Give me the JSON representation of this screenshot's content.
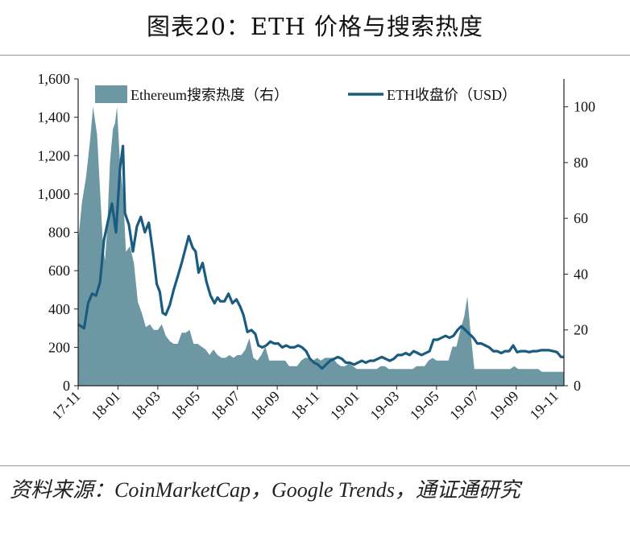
{
  "header": {
    "title": "图表20：ETH 价格与搜索热度"
  },
  "footer": {
    "source": "资料来源：CoinMarketCap，Google Trends，通证通研究"
  },
  "chart_data": {
    "type": "line",
    "title": "图表20：ETH 价格与搜索热度",
    "series": [
      {
        "name": "Ethereum搜索热度（右）",
        "kind": "area",
        "axis": "right",
        "color": "#6e97a4"
      },
      {
        "name": "ETH收盘价（USD）",
        "kind": "line",
        "axis": "left",
        "color": "#1a5c80"
      }
    ],
    "legend_position": "top",
    "left_axis": {
      "ylim": [
        0,
        1600
      ],
      "ticks": [
        "0",
        "200",
        "400",
        "600",
        "800",
        "1,000",
        "1,200",
        "1,400",
        "1,600"
      ]
    },
    "right_axis": {
      "ylim": [
        0,
        110
      ],
      "ticks": [
        "0",
        "20",
        "40",
        "60",
        "80",
        "100"
      ]
    },
    "x_ticks": [
      "17-11",
      "18-01",
      "18-03",
      "18-05",
      "18-07",
      "18-09",
      "18-11",
      "19-01",
      "19-03",
      "19-05",
      "19-07",
      "19-09",
      "19-11"
    ],
    "x_range": [
      0,
      24.4
    ],
    "price_points": [
      [
        0,
        320
      ],
      [
        0.3,
        300
      ],
      [
        0.5,
        430
      ],
      [
        0.7,
        480
      ],
      [
        0.9,
        470
      ],
      [
        1.1,
        540
      ],
      [
        1.3,
        760
      ],
      [
        1.5,
        860
      ],
      [
        1.7,
        950
      ],
      [
        1.9,
        800
      ],
      [
        2.1,
        1130
      ],
      [
        2.25,
        1250
      ],
      [
        2.35,
        900
      ],
      [
        2.55,
        840
      ],
      [
        2.75,
        700
      ],
      [
        2.95,
        830
      ],
      [
        3.15,
        880
      ],
      [
        3.35,
        800
      ],
      [
        3.55,
        850
      ],
      [
        3.75,
        700
      ],
      [
        3.95,
        530
      ],
      [
        4.1,
        490
      ],
      [
        4.25,
        380
      ],
      [
        4.4,
        370
      ],
      [
        4.6,
        420
      ],
      [
        4.8,
        500
      ],
      [
        5.0,
        570
      ],
      [
        5.2,
        640
      ],
      [
        5.4,
        720
      ],
      [
        5.55,
        780
      ],
      [
        5.75,
        720
      ],
      [
        5.9,
        700
      ],
      [
        6.05,
        590
      ],
      [
        6.25,
        640
      ],
      [
        6.45,
        540
      ],
      [
        6.65,
        470
      ],
      [
        6.85,
        430
      ],
      [
        7.0,
        460
      ],
      [
        7.15,
        440
      ],
      [
        7.35,
        440
      ],
      [
        7.55,
        480
      ],
      [
        7.75,
        430
      ],
      [
        7.95,
        450
      ],
      [
        8.15,
        410
      ],
      [
        8.3,
        370
      ],
      [
        8.5,
        280
      ],
      [
        8.7,
        290
      ],
      [
        8.9,
        270
      ],
      [
        9.05,
        210
      ],
      [
        9.25,
        200
      ],
      [
        9.45,
        210
      ],
      [
        9.65,
        230
      ],
      [
        9.85,
        220
      ],
      [
        10.05,
        220
      ],
      [
        10.25,
        200
      ],
      [
        10.45,
        210
      ],
      [
        10.65,
        200
      ],
      [
        10.85,
        200
      ],
      [
        11.05,
        210
      ],
      [
        11.25,
        200
      ],
      [
        11.45,
        180
      ],
      [
        11.65,
        140
      ],
      [
        11.85,
        120
      ],
      [
        12.05,
        110
      ],
      [
        12.25,
        90
      ],
      [
        12.45,
        110
      ],
      [
        12.65,
        130
      ],
      [
        12.85,
        140
      ],
      [
        13.05,
        150
      ],
      [
        13.25,
        140
      ],
      [
        13.45,
        120
      ],
      [
        13.65,
        120
      ],
      [
        13.85,
        110
      ],
      [
        14.05,
        120
      ],
      [
        14.25,
        130
      ],
      [
        14.45,
        120
      ],
      [
        14.65,
        130
      ],
      [
        14.85,
        130
      ],
      [
        15.05,
        140
      ],
      [
        15.25,
        150
      ],
      [
        15.45,
        140
      ],
      [
        15.65,
        130
      ],
      [
        15.85,
        140
      ],
      [
        16.05,
        160
      ],
      [
        16.25,
        160
      ],
      [
        16.45,
        170
      ],
      [
        16.65,
        160
      ],
      [
        16.85,
        180
      ],
      [
        17.05,
        170
      ],
      [
        17.25,
        160
      ],
      [
        17.45,
        170
      ],
      [
        17.65,
        180
      ],
      [
        17.85,
        240
      ],
      [
        18.05,
        240
      ],
      [
        18.25,
        250
      ],
      [
        18.45,
        260
      ],
      [
        18.65,
        250
      ],
      [
        18.85,
        260
      ],
      [
        19.05,
        290
      ],
      [
        19.25,
        310
      ],
      [
        19.45,
        290
      ],
      [
        19.65,
        270
      ],
      [
        19.85,
        250
      ],
      [
        20.05,
        220
      ],
      [
        20.25,
        220
      ],
      [
        20.45,
        210
      ],
      [
        20.65,
        200
      ],
      [
        20.85,
        180
      ],
      [
        21.05,
        180
      ],
      [
        21.25,
        170
      ],
      [
        21.45,
        180
      ],
      [
        21.65,
        180
      ],
      [
        21.85,
        210
      ],
      [
        22.05,
        175
      ],
      [
        22.25,
        180
      ],
      [
        22.45,
        180
      ],
      [
        22.65,
        175
      ],
      [
        22.85,
        180
      ],
      [
        23.05,
        180
      ],
      [
        23.25,
        185
      ],
      [
        23.45,
        185
      ],
      [
        23.65,
        185
      ],
      [
        23.85,
        180
      ],
      [
        24.05,
        175
      ],
      [
        24.25,
        150
      ],
      [
        24.4,
        150
      ]
    ],
    "search_points": [
      [
        0,
        52
      ],
      [
        0.2,
        66
      ],
      [
        0.4,
        75
      ],
      [
        0.6,
        88
      ],
      [
        0.75,
        100
      ],
      [
        0.95,
        90
      ],
      [
        1.1,
        70
      ],
      [
        1.25,
        50
      ],
      [
        1.35,
        45
      ],
      [
        1.45,
        55
      ],
      [
        1.6,
        80
      ],
      [
        1.75,
        92
      ],
      [
        1.85,
        94
      ],
      [
        1.95,
        100
      ],
      [
        2.1,
        80
      ],
      [
        2.25,
        70
      ],
      [
        2.4,
        48
      ],
      [
        2.6,
        50
      ],
      [
        2.8,
        44
      ],
      [
        3.0,
        30
      ],
      [
        3.2,
        26
      ],
      [
        3.4,
        21
      ],
      [
        3.6,
        22
      ],
      [
        3.8,
        20
      ],
      [
        4.0,
        20
      ],
      [
        4.2,
        22
      ],
      [
        4.4,
        18
      ],
      [
        4.6,
        16
      ],
      [
        4.8,
        15
      ],
      [
        5.0,
        15
      ],
      [
        5.2,
        19
      ],
      [
        5.4,
        19
      ],
      [
        5.6,
        20
      ],
      [
        5.8,
        15
      ],
      [
        6.0,
        15
      ],
      [
        6.2,
        14
      ],
      [
        6.4,
        13
      ],
      [
        6.6,
        11
      ],
      [
        6.8,
        13
      ],
      [
        7.0,
        11
      ],
      [
        7.2,
        10
      ],
      [
        7.4,
        10
      ],
      [
        7.6,
        11
      ],
      [
        7.8,
        10
      ],
      [
        8.0,
        11
      ],
      [
        8.2,
        11
      ],
      [
        8.4,
        13
      ],
      [
        8.6,
        17
      ],
      [
        8.8,
        10
      ],
      [
        9.0,
        9
      ],
      [
        9.2,
        11
      ],
      [
        9.4,
        14
      ],
      [
        9.6,
        9
      ],
      [
        9.8,
        9
      ],
      [
        10.0,
        9
      ],
      [
        10.2,
        9
      ],
      [
        10.4,
        9
      ],
      [
        10.6,
        7
      ],
      [
        10.8,
        7
      ],
      [
        11.0,
        7
      ],
      [
        11.2,
        9
      ],
      [
        11.4,
        10
      ],
      [
        11.6,
        10
      ],
      [
        11.8,
        9
      ],
      [
        12.0,
        10
      ],
      [
        12.2,
        9
      ],
      [
        12.4,
        10
      ],
      [
        12.6,
        10
      ],
      [
        12.8,
        10
      ],
      [
        13.0,
        8
      ],
      [
        13.2,
        7
      ],
      [
        13.4,
        7
      ],
      [
        13.6,
        8
      ],
      [
        13.8,
        7
      ],
      [
        14.0,
        6
      ],
      [
        14.2,
        6
      ],
      [
        14.4,
        6
      ],
      [
        14.6,
        6
      ],
      [
        14.8,
        6
      ],
      [
        15.0,
        6
      ],
      [
        15.2,
        7
      ],
      [
        15.4,
        7
      ],
      [
        15.6,
        6
      ],
      [
        15.8,
        6
      ],
      [
        16.0,
        6
      ],
      [
        16.2,
        6
      ],
      [
        16.4,
        6
      ],
      [
        16.6,
        6
      ],
      [
        16.8,
        6
      ],
      [
        17.0,
        7
      ],
      [
        17.2,
        7
      ],
      [
        17.4,
        7
      ],
      [
        17.6,
        9
      ],
      [
        17.8,
        10
      ],
      [
        18.0,
        9
      ],
      [
        18.2,
        9
      ],
      [
        18.4,
        9
      ],
      [
        18.6,
        9
      ],
      [
        18.8,
        14
      ],
      [
        19.0,
        14
      ],
      [
        19.2,
        20
      ],
      [
        19.4,
        25
      ],
      [
        19.55,
        32
      ],
      [
        19.7,
        20
      ],
      [
        19.9,
        6
      ],
      [
        20.1,
        6
      ],
      [
        20.3,
        6
      ],
      [
        20.5,
        6
      ],
      [
        20.7,
        6
      ],
      [
        20.9,
        6
      ],
      [
        21.1,
        6
      ],
      [
        21.3,
        6
      ],
      [
        21.5,
        6
      ],
      [
        21.7,
        6
      ],
      [
        21.9,
        7
      ],
      [
        22.1,
        6
      ],
      [
        22.3,
        6
      ],
      [
        22.5,
        6
      ],
      [
        22.7,
        6
      ],
      [
        22.9,
        6
      ],
      [
        23.1,
        6
      ],
      [
        23.3,
        5
      ],
      [
        23.5,
        5
      ],
      [
        23.7,
        5
      ],
      [
        23.9,
        5
      ],
      [
        24.1,
        5
      ],
      [
        24.3,
        5
      ],
      [
        24.4,
        5
      ]
    ]
  }
}
